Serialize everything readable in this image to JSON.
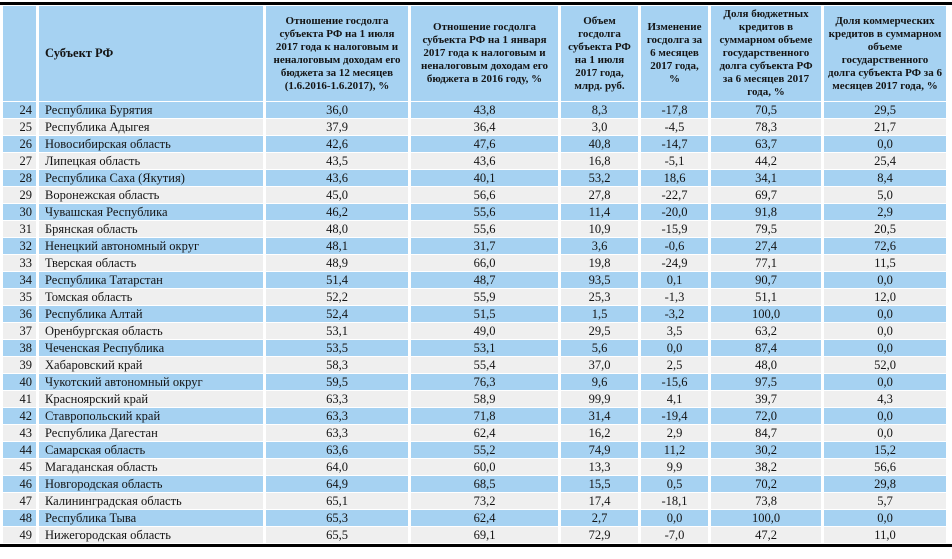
{
  "colors": {
    "row-blue": "#A6D2F2",
    "row-gray": "#EFEFEF",
    "rule-black": "#000000",
    "text": "#141414"
  },
  "table": {
    "columns": [
      {
        "label": ""
      },
      {
        "label": "Субъект РФ"
      },
      {
        "label": "Отношение госдолга субъекта РФ на 1 июля 2017 года к налоговым и неналоговым доходам его бюджета за 12 месяцев (1.6.2016-1.6.2017), %"
      },
      {
        "label": "Отношение госдолга субъекта РФ на 1 января 2017 года к налоговым и неналоговым доходам его бюджета в 2016 году, %"
      },
      {
        "label": "Объем госдолга субъекта РФ на 1 июля 2017 года, млрд. руб."
      },
      {
        "label": "Изменение госдолга за 6 месяцев 2017 года, %"
      },
      {
        "label": "Доля бюджетных кредитов в суммарном объеме государственного долга субъекта РФ за 6 месяцев 2017 года, %"
      },
      {
        "label": "Доля коммерческих кредитов в суммарном объеме государственного долга субъекта РФ за 6 месяцев 2017 года, %"
      }
    ],
    "rows": [
      [
        "24",
        "Республика Бурятия",
        "36,0",
        "43,8",
        "8,3",
        "-17,8",
        "70,5",
        "29,5"
      ],
      [
        "25",
        "Республика Адыгея",
        "37,9",
        "36,4",
        "3,0",
        "-4,5",
        "78,3",
        "21,7"
      ],
      [
        "26",
        "Новосибирская область",
        "42,6",
        "47,6",
        "40,8",
        "-14,7",
        "63,7",
        "0,0"
      ],
      [
        "27",
        "Липецкая область",
        "43,5",
        "43,6",
        "16,8",
        "-5,1",
        "44,2",
        "25,4"
      ],
      [
        "28",
        "Республика Саха (Якутия)",
        "43,6",
        "40,1",
        "53,2",
        "18,6",
        "34,1",
        "8,4"
      ],
      [
        "29",
        "Воронежская область",
        "45,0",
        "56,6",
        "27,8",
        "-22,7",
        "69,7",
        "5,0"
      ],
      [
        "30",
        "Чувашская Республика",
        "46,2",
        "55,6",
        "11,4",
        "-20,0",
        "91,8",
        "2,9"
      ],
      [
        "31",
        "Брянская область",
        "48,0",
        "55,6",
        "10,9",
        "-15,9",
        "79,5",
        "20,5"
      ],
      [
        "32",
        "Ненецкий автономный округ",
        "48,1",
        "31,7",
        "3,6",
        "-0,6",
        "27,4",
        "72,6"
      ],
      [
        "33",
        "Тверская область",
        "48,9",
        "66,0",
        "19,8",
        "-24,9",
        "77,1",
        "11,5"
      ],
      [
        "34",
        "Республика Татарстан",
        "51,4",
        "48,7",
        "93,5",
        "0,1",
        "90,7",
        "0,0"
      ],
      [
        "35",
        "Томская область",
        "52,2",
        "55,9",
        "25,3",
        "-1,3",
        "51,1",
        "12,0"
      ],
      [
        "36",
        "Республика Алтай",
        "52,4",
        "51,5",
        "1,5",
        "-3,2",
        "100,0",
        "0,0"
      ],
      [
        "37",
        "Оренбургская область",
        "53,1",
        "49,0",
        "29,5",
        "3,5",
        "63,2",
        "0,0"
      ],
      [
        "38",
        "Чеченская Республика",
        "53,5",
        "53,1",
        "5,6",
        "0,0",
        "87,4",
        "0,0"
      ],
      [
        "39",
        "Хабаровский край",
        "58,3",
        "55,4",
        "37,0",
        "2,5",
        "48,0",
        "52,0"
      ],
      [
        "40",
        "Чукотский автономный округ",
        "59,5",
        "76,3",
        "9,6",
        "-15,6",
        "97,5",
        "0,0"
      ],
      [
        "41",
        "Красноярский край",
        "63,3",
        "58,9",
        "99,9",
        "4,1",
        "39,7",
        "4,3"
      ],
      [
        "42",
        "Ставропольский край",
        "63,3",
        "71,8",
        "31,4",
        "-19,4",
        "72,0",
        "0,0"
      ],
      [
        "43",
        "Республика Дагестан",
        "63,3",
        "62,4",
        "16,2",
        "2,9",
        "84,7",
        "0,0"
      ],
      [
        "44",
        "Самарская область",
        "63,6",
        "55,2",
        "74,9",
        "11,2",
        "30,2",
        "15,2"
      ],
      [
        "45",
        "Магаданская область",
        "64,0",
        "60,0",
        "13,3",
        "9,9",
        "38,2",
        "56,6"
      ],
      [
        "46",
        "Новгородская область",
        "64,9",
        "68,5",
        "15,5",
        "0,5",
        "70,2",
        "29,8"
      ],
      [
        "47",
        "Калининградская область",
        "65,1",
        "73,2",
        "17,4",
        "-18,1",
        "73,8",
        "5,7"
      ],
      [
        "48",
        "Республика Тыва",
        "65,3",
        "62,4",
        "2,7",
        "0,0",
        "100,0",
        "0,0"
      ],
      [
        "49",
        "Нижегородская область",
        "65,5",
        "69,1",
        "72,9",
        "-7,0",
        "47,2",
        "11,0"
      ]
    ]
  }
}
